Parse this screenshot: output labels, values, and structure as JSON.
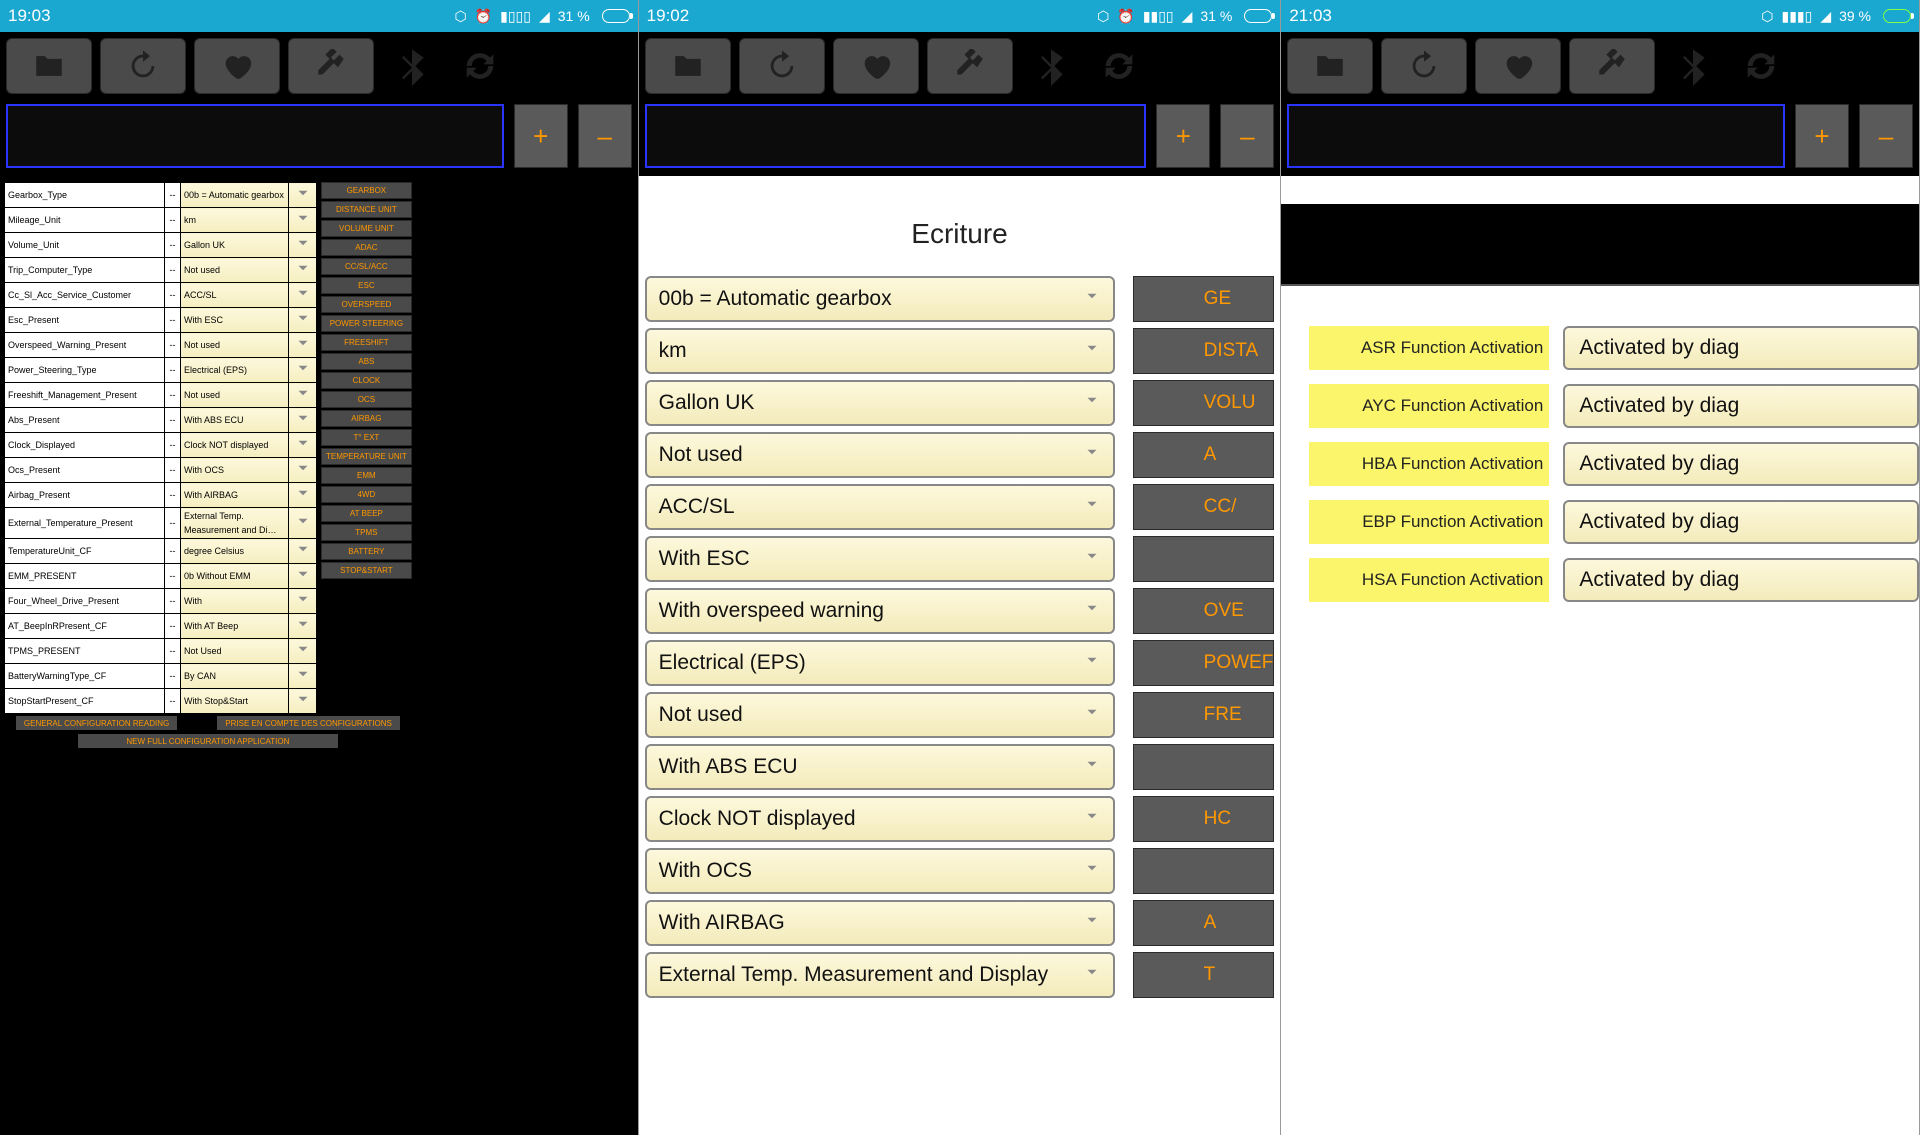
{
  "phones": [
    {
      "time": "19:03",
      "battery": "31 %",
      "charging": false,
      "params": [
        {
          "label": "Gearbox_Type",
          "val": "00b = Automatic gearbox",
          "side": "GEARBOX"
        },
        {
          "label": "Mileage_Unit",
          "val": "km",
          "side": "DISTANCE UNIT"
        },
        {
          "label": "Volume_Unit",
          "val": "Gallon UK",
          "side": "VOLUME UNIT"
        },
        {
          "label": "Trip_Computer_Type",
          "val": "Not used",
          "side": "ADAC"
        },
        {
          "label": "Cc_Sl_Acc_Service_Customer",
          "val": "ACC/SL",
          "side": "CC/SL/ACC"
        },
        {
          "label": "Esc_Present",
          "val": "With ESC",
          "side": "ESC"
        },
        {
          "label": "Overspeed_Warning_Present",
          "val": "Not used",
          "side": "OVERSPEED"
        },
        {
          "label": "Power_Steering_Type",
          "val": "Electrical (EPS)",
          "side": "POWER STEERING"
        },
        {
          "label": "Freeshift_Management_Present",
          "val": "Not used",
          "side": "FREESHIFT"
        },
        {
          "label": "Abs_Present",
          "val": "With ABS ECU",
          "side": "ABS"
        },
        {
          "label": "Clock_Displayed",
          "val": "Clock NOT displayed",
          "side": "CLOCK"
        },
        {
          "label": "Ocs_Present",
          "val": "With OCS",
          "side": "OCS"
        },
        {
          "label": "Airbag_Present",
          "val": "With AIRBAG",
          "side": "AIRBAG"
        },
        {
          "label": "External_Temperature_Present",
          "val": "External Temp. Measurement and Di…",
          "side": "T° EXT"
        },
        {
          "label": "TemperatureUnit_CF",
          "val": "degree Celsius",
          "side": "TEMPERATURE UNIT"
        },
        {
          "label": "EMM_PRESENT",
          "val": "0b Without EMM",
          "side": "EMM"
        },
        {
          "label": "Four_Wheel_Drive_Present",
          "val": "With",
          "side": "4WD"
        },
        {
          "label": "AT_BeepInRPresent_CF",
          "val": "With AT Beep",
          "side": "AT BEEP"
        },
        {
          "label": "TPMS_PRESENT",
          "val": "Not Used",
          "side": "TPMS"
        },
        {
          "label": "BatteryWarningType_CF",
          "val": "By CAN",
          "side": "BATTERY"
        },
        {
          "label": "StopStartPresent_CF",
          "val": "With Stop&Start",
          "side": "STOP&START"
        }
      ],
      "bottom1": "GENERAL CONFIGURATION READING",
      "bottom2": "PRISE EN COMPTE DES CONFIGURATIONS",
      "bottom3": "NEW FULL CONFIGURATION APPLICATION"
    },
    {
      "time": "19:02",
      "battery": "31 %",
      "charging": false,
      "title": "Ecriture",
      "rows": [
        {
          "val": "00b = Automatic gearbox",
          "tag": "GE"
        },
        {
          "val": "km",
          "tag": "DISTA"
        },
        {
          "val": "Gallon UK",
          "tag": "VOLU"
        },
        {
          "val": "Not used",
          "tag": "A"
        },
        {
          "val": "ACC/SL",
          "tag": "CC/"
        },
        {
          "val": "With ESC",
          "tag": ""
        },
        {
          "val": "With overspeed warning",
          "tag": "OVE"
        },
        {
          "val": "Electrical (EPS)",
          "tag": "POWEF"
        },
        {
          "val": "Not used",
          "tag": "FRE"
        },
        {
          "val": "With ABS ECU",
          "tag": ""
        },
        {
          "val": "Clock NOT displayed",
          "tag": "HC"
        },
        {
          "val": "With OCS",
          "tag": ""
        },
        {
          "val": "With AIRBAG",
          "tag": "A"
        },
        {
          "val": "External Temp. Measurement and Display",
          "tag": "T"
        }
      ]
    },
    {
      "time": "21:03",
      "battery": "39 %",
      "charging": true,
      "rows": [
        {
          "label": "ASR Function Activation",
          "val": "Activated by diag"
        },
        {
          "label": "AYC Function Activation",
          "val": "Activated by diag"
        },
        {
          "label": "HBA Function Activation",
          "val": "Activated by diag"
        },
        {
          "label": "EBP Function Activation",
          "val": "Activated by diag"
        },
        {
          "label": "HSA Function Activation",
          "val": "Activated by diag"
        }
      ]
    }
  ],
  "toolbar_icons": [
    "folder",
    "reload",
    "heart",
    "wrench",
    "bluetooth",
    "sync"
  ],
  "plus": "+",
  "minus": "–"
}
